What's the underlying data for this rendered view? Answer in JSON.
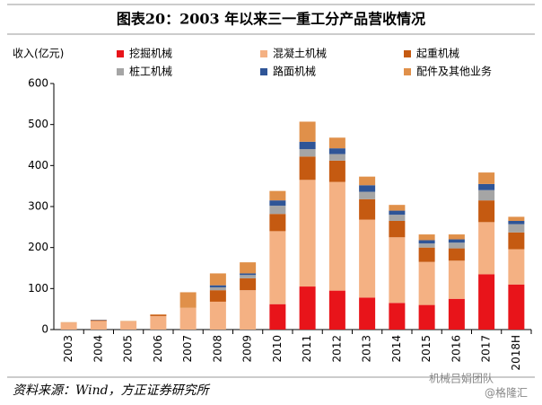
{
  "chart_data": {
    "type": "stacked-bar",
    "title": "图表20：2003 年以来三一重工分产品营收情况",
    "y_label": "收入(亿元)",
    "categories": [
      "2003",
      "2004",
      "2005",
      "2006",
      "2007",
      "2008",
      "2009",
      "2010",
      "2011",
      "2012",
      "2013",
      "2014",
      "2015",
      "2016",
      "2017",
      "2018H"
    ],
    "series": [
      {
        "name": "挖掘机械",
        "color": "#e8141a",
        "values": [
          0,
          0,
          0,
          0,
          0,
          0,
          0,
          62,
          105,
          95,
          78,
          65,
          60,
          75,
          135,
          110
        ]
      },
      {
        "name": "混凝土机械",
        "color": "#f4b183",
        "values": [
          17,
          21,
          20,
          33,
          53,
          68,
          96,
          178,
          260,
          265,
          190,
          160,
          105,
          93,
          127,
          86
        ]
      },
      {
        "name": "起重机械",
        "color": "#c55a11",
        "values": [
          0,
          1,
          0,
          3,
          0,
          28,
          29,
          42,
          57,
          52,
          50,
          40,
          35,
          30,
          53,
          41
        ]
      },
      {
        "name": "桩工机械",
        "color": "#a5a5a5",
        "values": [
          0,
          0,
          0,
          0,
          0,
          7,
          8,
          20,
          18,
          16,
          18,
          15,
          10,
          14,
          25,
          20
        ]
      },
      {
        "name": "路面机械",
        "color": "#2f5597",
        "values": [
          0,
          1,
          0,
          0,
          0,
          5,
          4,
          13,
          18,
          14,
          16,
          10,
          8,
          8,
          15,
          8
        ]
      },
      {
        "name": "配件及其他业务",
        "color": "#e0904a",
        "values": [
          1,
          1,
          1,
          1,
          38,
          29,
          27,
          23,
          49,
          26,
          21,
          14,
          14,
          12,
          28,
          10
        ]
      }
    ],
    "ylim": [
      0,
      600
    ],
    "yticks": [
      0,
      100,
      200,
      300,
      400,
      500,
      600
    ],
    "grid": false
  },
  "source": "资料来源：Wind，方正证券研究所",
  "watermark": [
    "机械吕娟团队",
    "@格隆汇"
  ]
}
